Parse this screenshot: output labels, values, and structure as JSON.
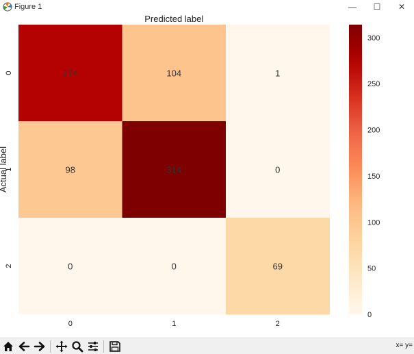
{
  "window": {
    "title": "Figure 1",
    "minimize_glyph": "—",
    "maximize_glyph": "☐",
    "close_glyph": "✕"
  },
  "chart_data": {
    "type": "heatmap",
    "title": "Predicted label",
    "xlabel": "Predicted label",
    "ylabel": "Actual label",
    "x_categories": [
      "0",
      "1",
      "2"
    ],
    "y_categories": [
      "0",
      "1",
      "2"
    ],
    "values": [
      [
        274,
        104,
        1
      ],
      [
        98,
        314,
        0
      ],
      [
        0,
        0,
        69
      ]
    ],
    "colormap": "OrRd",
    "value_range": [
      0,
      314
    ],
    "colorbar_ticks": [
      0,
      50,
      100,
      150,
      200,
      250,
      300
    ],
    "annotation_color": "#333333"
  },
  "toolbar": {
    "buttons": [
      {
        "name": "home-button",
        "icon": "home-icon"
      },
      {
        "name": "back-button",
        "icon": "arrow-left-icon"
      },
      {
        "name": "forward-button",
        "icon": "arrow-right-icon"
      },
      {
        "name": "pan-button",
        "icon": "move-icon"
      },
      {
        "name": "zoom-button",
        "icon": "magnifier-icon"
      },
      {
        "name": "configure-subplots-button",
        "icon": "sliders-icon"
      },
      {
        "name": "save-button",
        "icon": "floppy-icon"
      }
    ],
    "coords_text": "x= y="
  }
}
